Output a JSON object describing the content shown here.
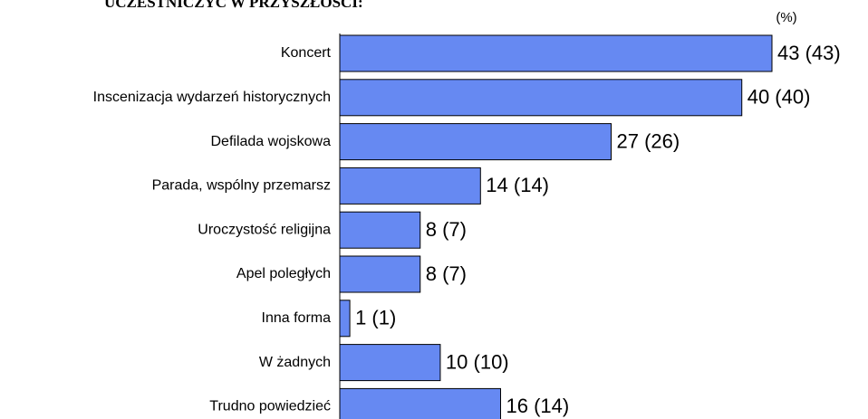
{
  "chart_data": {
    "type": "barh",
    "title": "UCZESTNICZYĆ W PRZYSZŁOŚCI:",
    "unit_label": "(%)",
    "categories": [
      "Koncert",
      "Inscenizacja wydarzeń historycznych",
      "Defilada wojskowa",
      "Parada, wspólny przemarsz",
      "Uroczystość religijna",
      "Apel poległych",
      "Inna forma",
      "W żadnych",
      "Trudno powiedzieć"
    ],
    "values": [
      43,
      40,
      27,
      14,
      8,
      8,
      1,
      10,
      16
    ],
    "value_labels": [
      "43 (43)",
      "40 (40)",
      "27 (26)",
      "14 (14)",
      "8 (7)",
      "8 (7)",
      "1 (1)",
      "10 (10)",
      "16 (14)"
    ],
    "color": "#6689f2"
  }
}
